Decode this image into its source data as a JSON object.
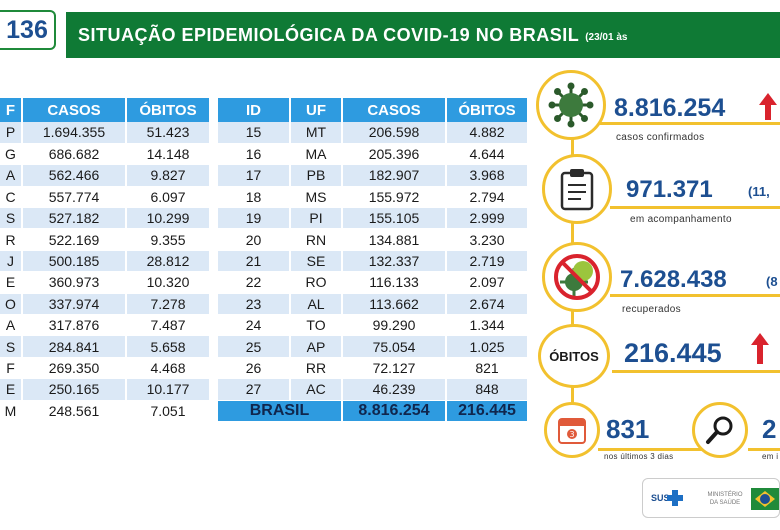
{
  "header": {
    "phone_fragment": "136",
    "title": "SITUAÇÃO EPIDEMIOLÓGICA DA COVID-19 NO BRASIL",
    "date_fragment": "(23/01 às"
  },
  "left_table": {
    "headers": [
      "F",
      "CASOS",
      "ÓBITOS"
    ],
    "rows": [
      [
        "P",
        "1.694.355",
        "51.423"
      ],
      [
        "G",
        "686.682",
        "14.148"
      ],
      [
        "A",
        "562.466",
        "9.827"
      ],
      [
        "C",
        "557.774",
        "6.097"
      ],
      [
        "S",
        "527.182",
        "10.299"
      ],
      [
        "R",
        "522.169",
        "9.355"
      ],
      [
        "J",
        "500.185",
        "28.812"
      ],
      [
        "E",
        "360.973",
        "10.320"
      ],
      [
        "O",
        "337.974",
        "7.278"
      ],
      [
        "A",
        "317.876",
        "7.487"
      ],
      [
        "S",
        "284.841",
        "5.658"
      ],
      [
        "F",
        "269.350",
        "4.468"
      ],
      [
        "E",
        "250.165",
        "10.177"
      ],
      [
        "M",
        "248.561",
        "7.051"
      ]
    ]
  },
  "right_table": {
    "headers": [
      "ID",
      "UF",
      "CASOS",
      "ÓBITOS"
    ],
    "rows": [
      [
        "15",
        "MT",
        "206.598",
        "4.882"
      ],
      [
        "16",
        "MA",
        "205.396",
        "4.644"
      ],
      [
        "17",
        "PB",
        "182.907",
        "3.968"
      ],
      [
        "18",
        "MS",
        "155.972",
        "2.794"
      ],
      [
        "19",
        "PI",
        "155.105",
        "2.999"
      ],
      [
        "20",
        "RN",
        "134.881",
        "3.230"
      ],
      [
        "21",
        "SE",
        "132.337",
        "2.719"
      ],
      [
        "22",
        "RO",
        "116.133",
        "2.097"
      ],
      [
        "23",
        "AL",
        "113.662",
        "2.674"
      ],
      [
        "24",
        "TO",
        "99.290",
        "1.344"
      ],
      [
        "25",
        "AP",
        "75.054",
        "1.025"
      ],
      [
        "26",
        "RR",
        "72.127",
        "821"
      ],
      [
        "27",
        "AC",
        "46.239",
        "848"
      ]
    ],
    "total": {
      "label": "BRASIL",
      "casos": "8.816.254",
      "obitos": "216.445"
    }
  },
  "kpis": {
    "confirmed": {
      "value": "8.816.254",
      "label": "casos confirmados",
      "icon": "virus-icon",
      "trend": "up"
    },
    "monitoring": {
      "value": "971.371",
      "paren": "(11,",
      "label": "em acompanhamento",
      "icon": "clipboard-icon"
    },
    "recovered": {
      "value": "7.628.438",
      "paren": "(8",
      "label": "recuperados",
      "icon": "crossed-virus-icon"
    },
    "deaths": {
      "badge": "ÓBITOS",
      "value": "216.445",
      "trend": "up"
    },
    "last3": {
      "value": "831",
      "label": "nos últimos 3 dias",
      "calendar_day": "3",
      "icon": "calendar-icon"
    },
    "investigation": {
      "value": "2",
      "label": "em i",
      "icon": "magnifier-icon"
    }
  },
  "footer": {
    "sus": "SUS",
    "ministry": "MINISTÉRIO DA SAÚDE"
  },
  "colors": {
    "green": "#0f7a35",
    "blue_header": "#2e9be0",
    "row_alt": "#dbe8f6",
    "navy": "#1d4f91",
    "gold": "#f2c12e",
    "red": "#d9232d"
  }
}
